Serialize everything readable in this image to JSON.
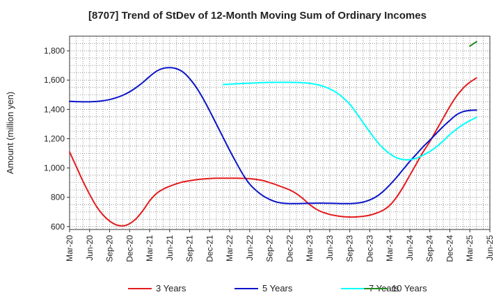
{
  "chart_data": {
    "type": "line",
    "title": "[8707]  Trend of StDev of 12-Month Moving Sum of Ordinary Incomes",
    "ylabel": "Amount (million yen)",
    "xlabel": "",
    "ylim": [
      580,
      1900
    ],
    "yticks": [
      600,
      800,
      1000,
      1200,
      1400,
      1600,
      1800
    ],
    "ytick_labels": [
      "600",
      "800",
      "1,000",
      "1,200",
      "1,400",
      "1,600",
      "1,800"
    ],
    "x_start": "Mar-20",
    "x_end": "Mar-25",
    "xticks": [
      "Mar-20",
      "Jun-20",
      "Sep-20",
      "Dec-20",
      "Mar-21",
      "Jun-21",
      "Sep-21",
      "Dec-21",
      "Mar-22",
      "Jun-22",
      "Sep-22",
      "Dec-22",
      "Mar-23",
      "Jun-23",
      "Sep-23",
      "Dec-23",
      "Mar-24",
      "Jun-24",
      "Sep-24",
      "Dec-24",
      "Mar-25",
      "Jun-25"
    ],
    "grid": true,
    "legend_position": "bottom",
    "series": [
      {
        "name": "3 Years",
        "color": "#e31a1c",
        "points": [
          [
            "Mar-20",
            1110
          ],
          [
            "Apr-20",
            1010
          ],
          [
            "May-20",
            910
          ],
          [
            "Jun-20",
            820
          ],
          [
            "Jul-20",
            740
          ],
          [
            "Aug-20",
            680
          ],
          [
            "Sep-20",
            638
          ],
          [
            "Oct-20",
            612
          ],
          [
            "Nov-20",
            605
          ],
          [
            "Dec-20",
            620
          ],
          [
            "Jan-21",
            655
          ],
          [
            "Feb-21",
            710
          ],
          [
            "Mar-21",
            775
          ],
          [
            "Apr-21",
            825
          ],
          [
            "May-21",
            855
          ],
          [
            "Jun-21",
            875
          ],
          [
            "Jul-21",
            892
          ],
          [
            "Aug-21",
            905
          ],
          [
            "Sep-21",
            913
          ],
          [
            "Oct-21",
            920
          ],
          [
            "Nov-21",
            925
          ],
          [
            "Dec-21",
            928
          ],
          [
            "Jan-22",
            930
          ],
          [
            "Feb-22",
            930
          ],
          [
            "Mar-22",
            930
          ],
          [
            "Apr-22",
            930
          ],
          [
            "May-22",
            929
          ],
          [
            "Jun-22",
            927
          ],
          [
            "Jul-22",
            922
          ],
          [
            "Aug-22",
            914
          ],
          [
            "Sep-22",
            900
          ],
          [
            "Oct-22",
            885
          ],
          [
            "Nov-22",
            868
          ],
          [
            "Dec-22",
            850
          ],
          [
            "Jan-23",
            825
          ],
          [
            "Feb-23",
            790
          ],
          [
            "Mar-23",
            750
          ],
          [
            "Apr-23",
            718
          ],
          [
            "May-23",
            697
          ],
          [
            "Jun-23",
            683
          ],
          [
            "Jul-23",
            674
          ],
          [
            "Aug-23",
            668
          ],
          [
            "Sep-23",
            665
          ],
          [
            "Oct-23",
            666
          ],
          [
            "Nov-23",
            670
          ],
          [
            "Dec-23",
            678
          ],
          [
            "Jan-24",
            692
          ],
          [
            "Feb-24",
            712
          ],
          [
            "Mar-24",
            745
          ],
          [
            "Apr-24",
            800
          ],
          [
            "May-24",
            870
          ],
          [
            "Jun-24",
            950
          ],
          [
            "Jul-24",
            1030
          ],
          [
            "Aug-24",
            1110
          ],
          [
            "Sep-24",
            1180
          ],
          [
            "Oct-24",
            1260
          ],
          [
            "Nov-24",
            1340
          ],
          [
            "Dec-24",
            1420
          ],
          [
            "Jan-25",
            1490
          ],
          [
            "Feb-25",
            1545
          ],
          [
            "Mar-25",
            1585
          ],
          [
            "Apr-25",
            1615
          ]
        ]
      },
      {
        "name": "5 Years",
        "color": "#0a14c8",
        "points": [
          [
            "Mar-20",
            1455
          ],
          [
            "Apr-20",
            1453
          ],
          [
            "May-20",
            1452
          ],
          [
            "Jun-20",
            1452
          ],
          [
            "Jul-20",
            1454
          ],
          [
            "Aug-20",
            1459
          ],
          [
            "Sep-20",
            1467
          ],
          [
            "Oct-20",
            1480
          ],
          [
            "Nov-20",
            1497
          ],
          [
            "Dec-20",
            1520
          ],
          [
            "Jan-21",
            1550
          ],
          [
            "Feb-21",
            1585
          ],
          [
            "Mar-21",
            1625
          ],
          [
            "Apr-21",
            1660
          ],
          [
            "May-21",
            1680
          ],
          [
            "Jun-21",
            1685
          ],
          [
            "Jul-21",
            1678
          ],
          [
            "Aug-21",
            1655
          ],
          [
            "Sep-21",
            1610
          ],
          [
            "Oct-21",
            1550
          ],
          [
            "Nov-21",
            1475
          ],
          [
            "Dec-21",
            1390
          ],
          [
            "Jan-22",
            1300
          ],
          [
            "Feb-22",
            1210
          ],
          [
            "Mar-22",
            1120
          ],
          [
            "Apr-22",
            1035
          ],
          [
            "May-22",
            955
          ],
          [
            "Jun-22",
            890
          ],
          [
            "Jul-22",
            845
          ],
          [
            "Aug-22",
            810
          ],
          [
            "Sep-22",
            785
          ],
          [
            "Oct-22",
            768
          ],
          [
            "Nov-22",
            760
          ],
          [
            "Dec-22",
            757
          ],
          [
            "Jan-23",
            757
          ],
          [
            "Feb-23",
            758
          ],
          [
            "Mar-23",
            759
          ],
          [
            "Apr-23",
            760
          ],
          [
            "May-23",
            760
          ],
          [
            "Jun-23",
            759
          ],
          [
            "Jul-23",
            758
          ],
          [
            "Aug-23",
            757
          ],
          [
            "Sep-23",
            757
          ],
          [
            "Oct-23",
            760
          ],
          [
            "Nov-23",
            767
          ],
          [
            "Dec-23",
            782
          ],
          [
            "Jan-24",
            805
          ],
          [
            "Feb-24",
            840
          ],
          [
            "Mar-24",
            885
          ],
          [
            "Apr-24",
            935
          ],
          [
            "May-24",
            990
          ],
          [
            "Jun-24",
            1045
          ],
          [
            "Jul-24",
            1095
          ],
          [
            "Aug-24",
            1145
          ],
          [
            "Sep-24",
            1190
          ],
          [
            "Oct-24",
            1237
          ],
          [
            "Nov-24",
            1283
          ],
          [
            "Dec-24",
            1325
          ],
          [
            "Jan-25",
            1363
          ],
          [
            "Feb-25",
            1385
          ],
          [
            "Mar-25",
            1393
          ],
          [
            "Apr-25",
            1395
          ]
        ]
      },
      {
        "name": "7 Years",
        "color": "#00ffff",
        "points": [
          [
            "Feb-22",
            1570
          ],
          [
            "Mar-22",
            1572
          ],
          [
            "Apr-22",
            1575
          ],
          [
            "May-22",
            1577
          ],
          [
            "Jun-22",
            1579
          ],
          [
            "Jul-22",
            1581
          ],
          [
            "Aug-22",
            1583
          ],
          [
            "Sep-22",
            1584
          ],
          [
            "Oct-22",
            1585
          ],
          [
            "Nov-22",
            1585
          ],
          [
            "Dec-22",
            1585
          ],
          [
            "Jan-23",
            1584
          ],
          [
            "Feb-23",
            1582
          ],
          [
            "Mar-23",
            1578
          ],
          [
            "Apr-23",
            1570
          ],
          [
            "May-23",
            1558
          ],
          [
            "Jun-23",
            1540
          ],
          [
            "Jul-23",
            1515
          ],
          [
            "Aug-23",
            1480
          ],
          [
            "Sep-23",
            1435
          ],
          [
            "Oct-23",
            1375
          ],
          [
            "Nov-23",
            1310
          ],
          [
            "Dec-23",
            1245
          ],
          [
            "Jan-24",
            1185
          ],
          [
            "Feb-24",
            1135
          ],
          [
            "Mar-24",
            1097
          ],
          [
            "Apr-24",
            1070
          ],
          [
            "May-24",
            1058
          ],
          [
            "Jun-24",
            1057
          ],
          [
            "Jul-24",
            1067
          ],
          [
            "Aug-24",
            1087
          ],
          [
            "Sep-24",
            1113
          ],
          [
            "Oct-24",
            1145
          ],
          [
            "Nov-24",
            1185
          ],
          [
            "Dec-24",
            1228
          ],
          [
            "Jan-25",
            1265
          ],
          [
            "Feb-25",
            1297
          ],
          [
            "Mar-25",
            1323
          ],
          [
            "Apr-25",
            1345
          ]
        ]
      },
      {
        "name": "10 Years",
        "color": "#228b22",
        "points": [
          [
            "Mar-25",
            1832
          ],
          [
            "Apr-25",
            1862
          ]
        ]
      }
    ]
  }
}
